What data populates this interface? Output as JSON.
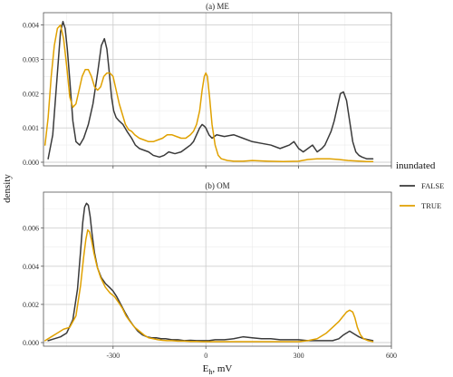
{
  "chart_data": {
    "type": "line",
    "xlabel_base": "E",
    "xlabel_sub": "h",
    "xlabel_rest": ", mV",
    "ylabel": "density",
    "xlim": [
      -525,
      600
    ],
    "xticks": [
      "-300",
      "0",
      "300",
      "600"
    ],
    "xtick_values": [
      -300,
      0,
      300,
      600
    ],
    "legend_title": "inundated",
    "legend_position": "right",
    "grid": true,
    "colors": {
      "FALSE": "#3a3a3a",
      "TRUE": "#e0a100"
    },
    "panels": [
      {
        "title": "(a) ME",
        "ylim": [
          0,
          0.0042
        ],
        "yticks": [
          "0.000",
          "0.001",
          "0.002",
          "0.003",
          "0.004"
        ],
        "ytick_values": [
          0,
          0.001,
          0.002,
          0.003,
          0.004
        ],
        "series": [
          {
            "name": "FALSE",
            "x": [
              -510,
              -495,
              -480,
              -470,
              -462,
              -455,
              -448,
              -440,
              -430,
              -420,
              -408,
              -395,
              -380,
              -365,
              -350,
              -338,
              -328,
              -320,
              -312,
              -305,
              -298,
              -290,
              -280,
              -268,
              -255,
              -240,
              -228,
              -215,
              -200,
              -185,
              -170,
              -150,
              -135,
              -120,
              -100,
              -80,
              -65,
              -50,
              -40,
              -30,
              -20,
              -12,
              -5,
              0,
              10,
              20,
              35,
              60,
              90,
              120,
              150,
              180,
              210,
              240,
              270,
              285,
              300,
              315,
              330,
              345,
              360,
              375,
              385,
              395,
              405,
              415,
              425,
              435,
              445,
              455,
              465,
              475,
              485,
              495,
              505,
              520,
              540
            ],
            "y": [
              0.0001,
              0.0008,
              0.0026,
              0.0038,
              0.0041,
              0.0039,
              0.0033,
              0.0024,
              0.0012,
              0.0006,
              0.0005,
              0.0007,
              0.0011,
              0.0017,
              0.0026,
              0.0034,
              0.0036,
              0.0033,
              0.0026,
              0.0019,
              0.0015,
              0.0013,
              0.0012,
              0.0011,
              0.0009,
              0.0007,
              0.0005,
              0.0004,
              0.00035,
              0.0003,
              0.0002,
              0.00015,
              0.0002,
              0.0003,
              0.00025,
              0.0003,
              0.0004,
              0.0005,
              0.0006,
              0.0008,
              0.001,
              0.0011,
              0.00105,
              0.001,
              0.0008,
              0.0007,
              0.0008,
              0.00075,
              0.0008,
              0.0007,
              0.0006,
              0.00055,
              0.0005,
              0.0004,
              0.0005,
              0.0006,
              0.0004,
              0.0003,
              0.0004,
              0.0005,
              0.0003,
              0.0004,
              0.0005,
              0.0007,
              0.0009,
              0.0012,
              0.0016,
              0.002,
              0.00205,
              0.0018,
              0.0012,
              0.0006,
              0.0003,
              0.0002,
              0.00015,
              0.0001,
              0.0001
            ]
          },
          {
            "name": "TRUE",
            "x": [
              -520,
              -510,
              -500,
              -490,
              -480,
              -470,
              -460,
              -450,
              -440,
              -430,
              -420,
              -410,
              -400,
              -390,
              -380,
              -370,
              -360,
              -350,
              -340,
              -330,
              -320,
              -310,
              -300,
              -290,
              -280,
              -270,
              -260,
              -250,
              -240,
              -230,
              -215,
              -200,
              -185,
              -170,
              -155,
              -140,
              -125,
              -110,
              -95,
              -80,
              -65,
              -50,
              -40,
              -30,
              -20,
              -12,
              -5,
              0,
              5,
              12,
              20,
              30,
              40,
              50,
              70,
              90,
              120,
              150,
              200,
              250,
              300,
              330,
              360,
              380,
              400,
              430,
              460,
              480,
              500,
              520,
              540
            ],
            "y": [
              0.0005,
              0.0013,
              0.0025,
              0.0034,
              0.0039,
              0.004,
              0.0036,
              0.0028,
              0.0019,
              0.0016,
              0.0017,
              0.0021,
              0.0025,
              0.0027,
              0.0027,
              0.0025,
              0.0022,
              0.0021,
              0.0022,
              0.0025,
              0.0026,
              0.0026,
              0.0025,
              0.0021,
              0.0017,
              0.0014,
              0.0011,
              0.00095,
              0.0009,
              0.0008,
              0.0007,
              0.00065,
              0.0006,
              0.0006,
              0.00065,
              0.0007,
              0.0008,
              0.0008,
              0.00075,
              0.0007,
              0.0007,
              0.0008,
              0.0009,
              0.0011,
              0.0015,
              0.0021,
              0.0025,
              0.0026,
              0.0025,
              0.0019,
              0.0011,
              0.0005,
              0.0002,
              0.0001,
              5e-05,
              3e-05,
              3e-05,
              5e-05,
              3e-05,
              2e-05,
              3e-05,
              8e-05,
              0.0001,
              0.0001,
              0.0001,
              8e-05,
              5e-05,
              4e-05,
              3e-05,
              2e-05,
              2e-05
            ]
          }
        ]
      },
      {
        "title": "(b) OM",
        "ylim": [
          0,
          0.0076
        ],
        "yticks": [
          "0.000",
          "0.002",
          "0.004",
          "0.006"
        ],
        "ytick_values": [
          0,
          0.002,
          0.004,
          0.006
        ],
        "series": [
          {
            "name": "FALSE",
            "x": [
              -510,
              -490,
              -470,
              -450,
              -430,
              -415,
              -405,
              -398,
              -392,
              -386,
              -380,
              -374,
              -368,
              -360,
              -350,
              -338,
              -325,
              -312,
              -300,
              -288,
              -275,
              -262,
              -248,
              -235,
              -220,
              -205,
              -190,
              -175,
              -160,
              -145,
              -130,
              -110,
              -90,
              -70,
              -50,
              -30,
              -10,
              10,
              30,
              60,
              90,
              120,
              150,
              180,
              210,
              240,
              270,
              300,
              330,
              360,
              390,
              410,
              430,
              445,
              455,
              465,
              475,
              485,
              495,
              510,
              540
            ],
            "y": [
              0.0001,
              0.0002,
              0.0003,
              0.0005,
              0.0012,
              0.0028,
              0.0048,
              0.0063,
              0.0071,
              0.0073,
              0.0072,
              0.0066,
              0.0057,
              0.0047,
              0.0039,
              0.0034,
              0.0031,
              0.0029,
              0.0027,
              0.0024,
              0.002,
              0.0016,
              0.0012,
              0.0009,
              0.0006,
              0.0004,
              0.0003,
              0.00025,
              0.00025,
              0.0002,
              0.0002,
              0.00015,
              0.00015,
              0.0001,
              0.00012,
              0.0001,
              0.0001,
              0.0001,
              0.00015,
              0.00015,
              0.0002,
              0.0003,
              0.00025,
              0.0002,
              0.0002,
              0.00015,
              0.00015,
              0.00015,
              0.0001,
              0.0001,
              0.0001,
              0.0001,
              0.0002,
              0.0004,
              0.0005,
              0.0006,
              0.0005,
              0.0004,
              0.0003,
              0.0002,
              0.0001
            ]
          },
          {
            "name": "TRUE",
            "x": [
              -520,
              -500,
              -480,
              -460,
              -440,
              -420,
              -405,
              -395,
              -388,
              -382,
              -376,
              -370,
              -362,
              -352,
              -340,
              -325,
              -310,
              -295,
              -282,
              -270,
              -258,
              -245,
              -230,
              -215,
              -200,
              -185,
              -170,
              -155,
              -140,
              -125,
              -110,
              -90,
              -70,
              -50,
              -30,
              -10,
              10,
              30,
              60,
              90,
              120,
              150,
              180,
              210,
              240,
              270,
              300,
              330,
              360,
              390,
              410,
              430,
              445,
              455,
              465,
              475,
              482,
              490,
              500,
              510,
              525,
              540
            ],
            "y": [
              0.0001,
              0.0003,
              0.0005,
              0.0007,
              0.0008,
              0.0014,
              0.003,
              0.0045,
              0.0054,
              0.0059,
              0.0058,
              0.0054,
              0.0047,
              0.004,
              0.0034,
              0.0029,
              0.0026,
              0.0024,
              0.0021,
              0.0018,
              0.0014,
              0.0011,
              0.0008,
              0.0006,
              0.0004,
              0.00025,
              0.0002,
              0.00015,
              0.00012,
              0.0001,
              0.0001,
              8e-05,
              8e-05,
              6e-05,
              6e-05,
              5e-05,
              5e-05,
              5e-05,
              5e-05,
              5e-05,
              5e-05,
              5e-05,
              5e-05,
              5e-05,
              5e-05,
              5e-05,
              5e-05,
              0.0001,
              0.0002,
              0.0005,
              0.0008,
              0.0011,
              0.0014,
              0.0016,
              0.0017,
              0.0016,
              0.0013,
              0.0008,
              0.0004,
              0.0002,
              0.0001,
              5e-05
            ]
          }
        ]
      }
    ]
  }
}
